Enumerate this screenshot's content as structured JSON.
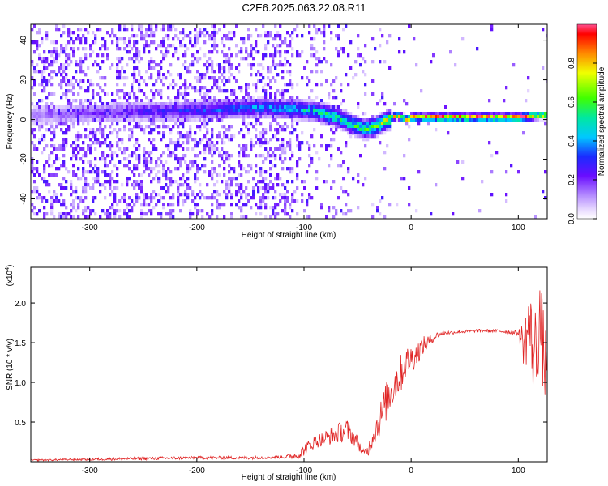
{
  "title": "C2E6.2025.063.22.08.R11",
  "colors": {
    "snr_line": "#e02424",
    "purple": "#6a0dff",
    "frame": "#000000"
  },
  "colorbar": {
    "label": "Normalized spectral amplitude",
    "range": [
      0,
      1
    ],
    "ticks": [
      0.0,
      0.2,
      0.4,
      0.6,
      0.8
    ],
    "tick_labels": [
      "0.0",
      "0.2",
      "0.4",
      "0.6",
      "0.8"
    ]
  },
  "chart_data": [
    {
      "type": "heatmap",
      "xlabel": "Height of straight line (km)",
      "ylabel": "Frequency (Hz)",
      "xlim": [
        -355,
        127
      ],
      "ylim": [
        -50,
        48
      ],
      "xticks": [
        -300,
        -200,
        -100,
        0,
        100
      ],
      "xtick_labels": [
        "-300",
        "-200",
        "-100",
        "0",
        "100"
      ],
      "yticks": [
        -40,
        -20,
        0,
        20,
        40
      ],
      "ytick_labels": [
        "-40",
        "-20",
        "0",
        "20",
        "40"
      ],
      "ridge": {
        "x": [
          -355,
          -300,
          -260,
          -220,
          -180,
          -140,
          -110,
          -90,
          -70,
          -55,
          -45,
          -35,
          -25,
          -15,
          -5,
          0,
          20,
          60,
          100,
          120,
          127
        ],
        "y": [
          3,
          4,
          5,
          5,
          6,
          7,
          6,
          5,
          2,
          -2,
          -4,
          -3,
          0,
          3,
          1,
          2,
          2,
          2,
          2,
          3,
          3
        ],
        "amplitude": [
          0.15,
          0.2,
          0.25,
          0.3,
          0.35,
          0.4,
          0.45,
          0.5,
          0.6,
          0.6,
          0.6,
          0.65,
          0.7,
          0.8,
          0.85,
          0.9,
          0.95,
          0.95,
          0.95,
          0.9,
          0.8
        ]
      }
    },
    {
      "type": "line",
      "xlabel": "Height of straight line (km)",
      "ylabel": "SNR (10 * v/v)",
      "y_multiplier": "(x10",
      "y_multiplier_exp": "4",
      "y_multiplier_close": ")",
      "xlim": [
        -355,
        127
      ],
      "ylim": [
        0,
        2.45
      ],
      "xticks": [
        -300,
        -200,
        -100,
        0,
        100
      ],
      "xtick_labels": [
        "-300",
        "-200",
        "-100",
        "0",
        "100"
      ],
      "yticks": [
        0.5,
        1.0,
        1.5,
        2.0
      ],
      "ytick_labels": [
        "0.5",
        "1.0",
        "1.5",
        "2.0"
      ],
      "series": [
        {
          "x": [
            -355,
            -300,
            -250,
            -200,
            -150,
            -120,
            -105,
            -100,
            -95,
            -90,
            -80,
            -70,
            -60,
            -50,
            -45,
            -40,
            -35,
            -30,
            -25,
            -20,
            -15,
            -10,
            -5,
            0,
            5,
            10,
            15,
            20,
            25,
            30,
            40,
            60,
            80,
            100,
            105,
            110,
            115,
            120,
            125,
            127
          ],
          "y": [
            0.02,
            0.03,
            0.04,
            0.05,
            0.05,
            0.06,
            0.08,
            0.15,
            0.2,
            0.25,
            0.3,
            0.35,
            0.4,
            0.25,
            0.1,
            0.15,
            0.35,
            0.5,
            0.7,
            0.85,
            1.0,
            1.1,
            1.25,
            1.3,
            1.35,
            1.45,
            1.5,
            1.55,
            1.6,
            1.62,
            1.63,
            1.65,
            1.65,
            1.62,
            1.5,
            1.7,
            1.3,
            1.8,
            1.2,
            1.4
          ],
          "noise": [
            0.01,
            0.015,
            0.02,
            0.02,
            0.02,
            0.02,
            0.05,
            0.08,
            0.08,
            0.08,
            0.1,
            0.12,
            0.15,
            0.08,
            0.05,
            0.08,
            0.15,
            0.2,
            0.25,
            0.25,
            0.25,
            0.25,
            0.2,
            0.18,
            0.15,
            0.12,
            0.1,
            0.05,
            0.04,
            0.03,
            0.02,
            0.02,
            0.02,
            0.03,
            0.3,
            0.5,
            0.6,
            0.6,
            0.5,
            0.4
          ]
        }
      ]
    }
  ]
}
